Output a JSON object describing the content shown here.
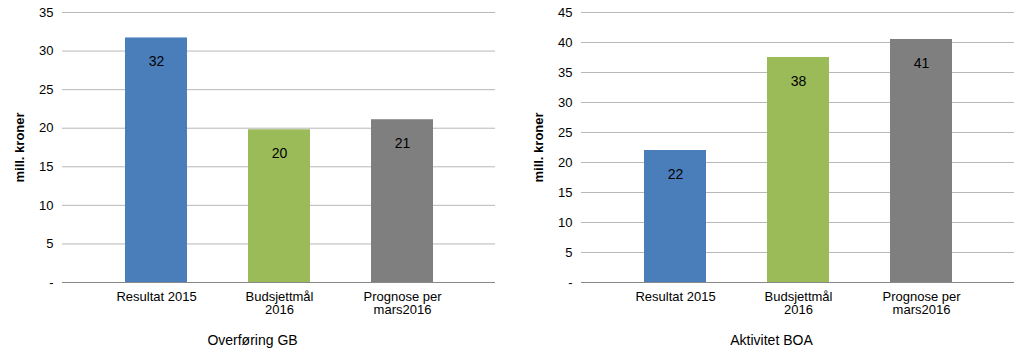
{
  "chart_data": [
    {
      "type": "bar",
      "title": "Overføring GB",
      "y_label": "mill. kroner",
      "categories": [
        "Resultat 2015",
        "Budsjettmål 2016",
        "Prognose per mars2016"
      ],
      "values": [
        31.7,
        19.8,
        21.1
      ],
      "value_labels": [
        "32",
        "20",
        "21"
      ],
      "colors": [
        "#4a7ebb",
        "#9bbb59",
        "#7f7f7f"
      ],
      "ylim": [
        0,
        35
      ],
      "yticks": [
        {
          "value": 0,
          "label": "-"
        },
        5,
        10,
        15,
        20,
        25,
        30,
        35
      ],
      "grid": true,
      "data_labels": true
    },
    {
      "type": "bar",
      "title": "Aktivitet BOA",
      "y_label": "mill. kroner",
      "categories": [
        "Resultat 2015",
        "Budsjettmål 2016",
        "Prognose per mars2016"
      ],
      "values": [
        22.0,
        37.5,
        40.5
      ],
      "value_labels": [
        "22",
        "38",
        "41"
      ],
      "colors": [
        "#4a7ebb",
        "#9bbb59",
        "#7f7f7f"
      ],
      "ylim": [
        0,
        45
      ],
      "yticks": [
        {
          "value": 0,
          "label": "-"
        },
        5,
        10,
        15,
        20,
        25,
        30,
        35,
        40,
        45
      ],
      "grid": true,
      "data_labels": true
    }
  ]
}
